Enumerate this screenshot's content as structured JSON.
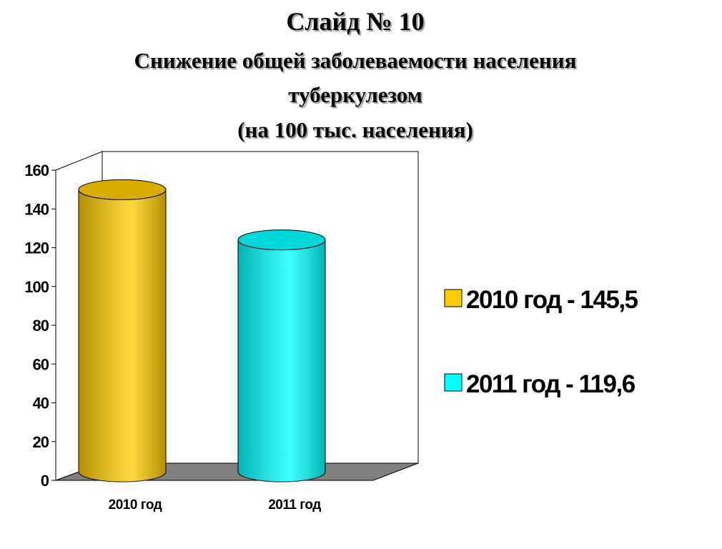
{
  "chart_data": {
    "type": "bar",
    "title": "Слайд № 10",
    "subtitle": [
      "Снижение общей заболеваемости населения",
      "туберкулезом",
      "(на 100 тыс. населения)"
    ],
    "categories": [
      "2010 год",
      "2011 год"
    ],
    "series": [
      {
        "name": "2010 год - 145,5",
        "color": "#ffcc00",
        "values": [
          145.5,
          null
        ]
      },
      {
        "name": "2011 год - 119,6",
        "color": "#00ffff",
        "values": [
          null,
          119.6
        ]
      }
    ],
    "ylim": [
      0,
      160
    ],
    "yticks": [
      0,
      20,
      40,
      60,
      80,
      100,
      120,
      140,
      160
    ],
    "legend": "right"
  }
}
